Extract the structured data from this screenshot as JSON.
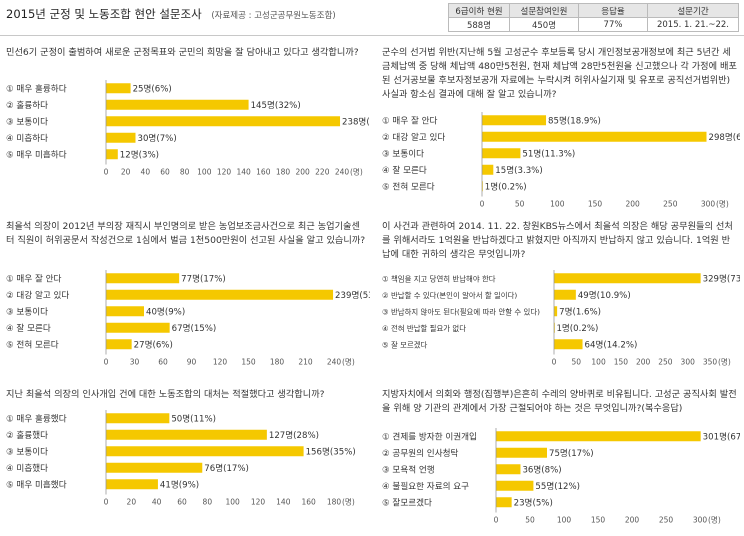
{
  "header": {
    "title": "2015년 군정 및 노동조합 현안 설문조사",
    "source": "(자료제공 : 고성군공무원노동조합)",
    "info_table": {
      "headers": [
        "6급이하 현원",
        "설문참여인원",
        "응답율",
        "설문기간"
      ],
      "values": [
        "588명",
        "450명",
        "77%",
        "2015. 1. 21.~22."
      ]
    }
  },
  "colors": {
    "bar": "#f5c800",
    "axis": "#999999",
    "text": "#333333"
  },
  "panels": [
    {
      "question": "민선6기 군정이 출범하여 새로운 군정목표와 군민의 희망을 잘 담아내고 있다고 생각합니까?"
    },
    {
      "question": "군수의 선거법 위반(지난해 5월 고성군수 후보등록 당시 개인정보공개정보에 최근 5년간 세금체납액 중 당해 체납액 480만5천원, 현재 체납액 28만5천원을 신고했으나 각 가정에 배포된 선거공보물 후보자정보공개 자료에는 누락시켜 허위사실기재 및 유포로 공직선거법위반)사실과 항소심 결과에 대해 잘 알고 있습니까?"
    },
    {
      "question": "최을석 의장이 2012년 부의장 재직시 부인명의로 받은 농업보조금사건으로 최근 농업기술센터 직원이 허위공문서 작성건으로 1심에서 벌금 1천500만원이 선고된 사실을 알고 있습니까?"
    },
    {
      "question": "이 사건과 관련하여 2014. 11. 22. 창원KBS뉴스에서 최을석 의장은 해당 공무원들의 선처를 위해서라도 1억원을 반납하겠다고 밝혔지만 아직까지 반납하지 않고 있습니다. 1억원 반납에 대한 귀하의 생각은 무엇입니까?"
    },
    {
      "question": "지난 최을석 의장의 인사개입 건에 대한 노동조합의 대처는 적절했다고 생각합니까?"
    },
    {
      "question": "지방자치에서 의회와 행정(집행부)은흔히 수레의 양바퀴로 비유됩니다. 고성군 공직사회 발전을 위해 양 기관의 관계에서 가장 근절되어야 하는 것은 무엇입니까?(복수응답)"
    }
  ],
  "chart_data": [
    {
      "type": "bar",
      "orientation": "horizontal",
      "categories": [
        "① 매우 훌륭하다",
        "② 훌륭하다",
        "③ 보통이다",
        "④ 미흡하다",
        "⑤ 매우 미흡하다"
      ],
      "values": [
        25,
        145,
        238,
        30,
        12
      ],
      "labels": [
        "25명(6%)",
        "145명(32%)",
        "238명(53%)",
        "30명(7%)",
        "12명(3%)"
      ],
      "xlim": [
        0,
        240
      ],
      "ticks": [
        "0",
        "20",
        "40",
        "60",
        "80",
        "100",
        "120",
        "140",
        "160",
        "180",
        "200",
        "220",
        "240"
      ],
      "unit": "(명)"
    },
    {
      "type": "bar",
      "orientation": "horizontal",
      "categories": [
        "① 매우 잘 안다",
        "② 대강 알고 있다",
        "③ 보통이다",
        "④ 잘 모른다",
        "⑤ 전혀 모른다"
      ],
      "values": [
        85,
        298,
        51,
        15,
        1
      ],
      "labels": [
        "85명(18.9%)",
        "298명(66.2%)",
        "51명(11.3%)",
        "15명(3.3%)",
        "1명(0.2%)"
      ],
      "xlim": [
        0,
        300
      ],
      "ticks": [
        "0",
        "50",
        "100",
        "150",
        "200",
        "250",
        "300"
      ],
      "unit": "(명)"
    },
    {
      "type": "bar",
      "orientation": "horizontal",
      "categories": [
        "① 매우 잘 안다",
        "② 대강 알고 있다",
        "③ 보통이다",
        "④ 잘 모른다",
        "⑤ 전혀 모른다"
      ],
      "values": [
        77,
        239,
        40,
        67,
        27
      ],
      "labels": [
        "77명(17%)",
        "239명(53%)",
        "40명(9%)",
        "67명(15%)",
        "27명(6%)"
      ],
      "xlim": [
        0,
        240
      ],
      "ticks": [
        "0",
        "30",
        "60",
        "90",
        "120",
        "150",
        "180",
        "210",
        "240"
      ],
      "unit": "(명)"
    },
    {
      "type": "bar",
      "orientation": "horizontal",
      "categories": [
        "① 책임을 지고 당연히 반납해야 한다",
        "② 반납할 수 있다(본인이 알아서 할 일이다)",
        "③ 반납하지 않아도 된다(필요에 따라 안할 수 있다)",
        "④ 전혀 반납할 필요가 없다",
        "⑤ 잘 모르겠다"
      ],
      "values": [
        329,
        49,
        7,
        1,
        64
      ],
      "labels": [
        "329명(73.1%)",
        "49명(10.9%)",
        "7명(1.6%)",
        "1명(0.2%)",
        "64명(14.2%)"
      ],
      "xlim": [
        0,
        350
      ],
      "ticks": [
        "0",
        "50",
        "100",
        "150",
        "200",
        "250",
        "300",
        "350"
      ],
      "unit": "(명)"
    },
    {
      "type": "bar",
      "orientation": "horizontal",
      "categories": [
        "① 매우 훌륭했다",
        "② 훌륭했다",
        "③ 보통이다",
        "④ 미흡했다",
        "⑤ 매우 미흡했다"
      ],
      "values": [
        50,
        127,
        156,
        76,
        41
      ],
      "labels": [
        "50명(11%)",
        "127명(28%)",
        "156명(35%)",
        "76명(17%)",
        "41명(9%)"
      ],
      "xlim": [
        0,
        180
      ],
      "ticks": [
        "0",
        "20",
        "40",
        "60",
        "80",
        "100",
        "120",
        "140",
        "160",
        "180"
      ],
      "unit": "(명)"
    },
    {
      "type": "bar",
      "orientation": "horizontal",
      "categories": [
        "① 견제를 방자한 이권개입",
        "② 공무원의 인사청탁",
        "③ 모욕적 언행",
        "④ 불필요한 자료의 요구",
        "⑤ 잘모르겠다"
      ],
      "values": [
        301,
        75,
        36,
        55,
        23
      ],
      "labels": [
        "301명(67%)",
        "75명(17%)",
        "36명(8%)",
        "55명(12%)",
        "23명(5%)"
      ],
      "xlim": [
        0,
        300
      ],
      "ticks": [
        "0",
        "50",
        "100",
        "150",
        "200",
        "250",
        "300"
      ],
      "unit": "(명)"
    }
  ]
}
